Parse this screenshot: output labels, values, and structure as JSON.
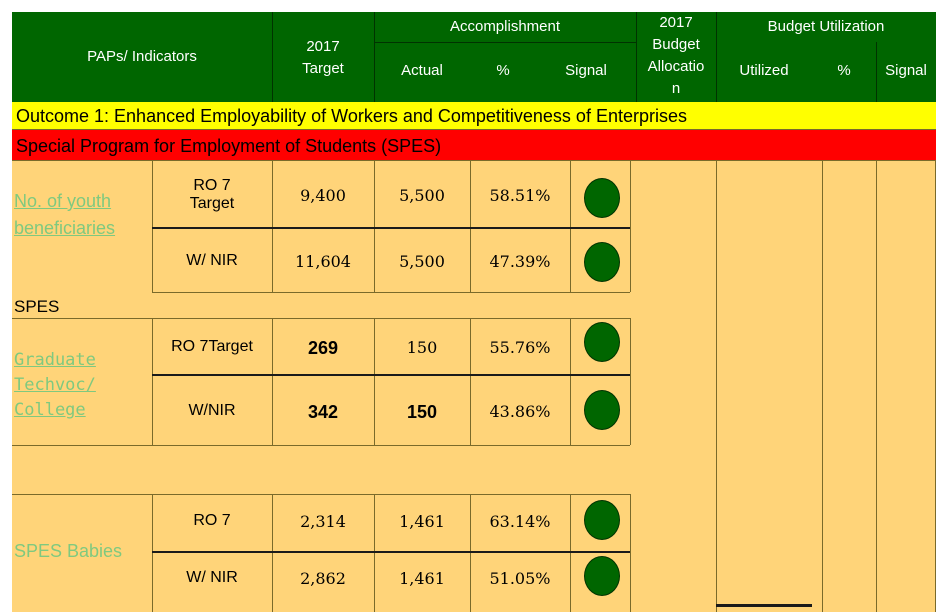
{
  "header": {
    "paps_indicators": "PAPs/ Indicators",
    "target_2017": "2017\nTarget",
    "accomplishment": "Accomplishment",
    "actual": "Actual",
    "percent": "%",
    "signal": "Signal",
    "budget_allocation": "2017\nBudget\nAllocatio\nn",
    "budget_utilization": "Budget Utilization",
    "utilized": "Utilized",
    "budget_percent": "%",
    "budget_signal": "Signal"
  },
  "outcome": "Outcome 1:  Enhanced Employability of Workers and Competitiveness of Enterprises",
  "program": "Special Program for Employment of Students (SPES)",
  "section_label": "SPES",
  "groups": [
    {
      "indicator": " No. of youth beneficiaries",
      "rows": [
        {
          "label": "RO 7\nTarget",
          "target": "9,400",
          "actual": "5,500",
          "percent": "58.51%"
        },
        {
          "label": "W/ NIR",
          "target": "11,604",
          "actual": "5,500",
          "percent": "47.39%"
        }
      ]
    },
    {
      "indicator": "Graduate Techvoc/ College",
      "rows": [
        {
          "label": "RO 7Target",
          "target": "269",
          "actual": "150",
          "percent": "55.76%"
        },
        {
          "label": "W/NIR",
          "target": "342",
          "actual": "150",
          "percent": "43.86%"
        }
      ]
    },
    {
      "indicator": "SPES Babies",
      "rows": [
        {
          "label": "RO 7",
          "target": "2,314",
          "actual": "1,461",
          "percent": "63.14%"
        },
        {
          "label": "W/ NIR",
          "target": "2,862",
          "actual": "1,461",
          "percent": "51.05%"
        }
      ]
    }
  ],
  "colors": {
    "header_green": "#006600",
    "body_tan": "#ffd479",
    "outcome_yellow": "#ffff00",
    "program_red": "#ff0000",
    "signal_green": "#006600",
    "link_green": "#7fc97f"
  }
}
